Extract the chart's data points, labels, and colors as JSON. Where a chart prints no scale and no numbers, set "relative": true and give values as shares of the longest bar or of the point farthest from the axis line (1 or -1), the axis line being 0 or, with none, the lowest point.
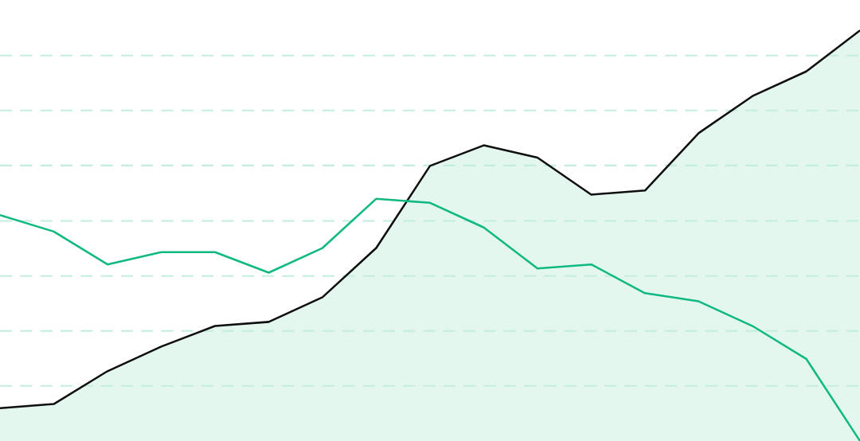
{
  "chart_data": {
    "type": "line",
    "relative": true,
    "marker": "none",
    "categories": [
      null,
      null,
      null,
      null,
      null,
      null,
      null,
      null,
      null,
      null,
      null,
      null,
      null,
      null,
      null,
      null,
      null
    ],
    "series": [
      {
        "type": "area",
        "color": "#e3f7ef",
        "values": [
          0.08,
          0.09,
          0.17,
          0.23,
          0.28,
          0.29,
          0.35,
          0.47,
          0.67,
          0.72,
          0.69,
          0.6,
          0.61,
          0.75,
          0.84,
          0.9,
          1
        ]
      },
      {
        "color": "#10b981",
        "values": [
          0.55,
          0.51,
          0.43,
          0.46,
          0.46,
          0.41,
          0.47,
          0.59,
          0.58,
          0.52,
          0.42,
          0.43,
          0.36,
          0.34,
          0.28,
          0.2,
          0
        ]
      }
    ],
    "ref_lines": [
      {
        "axis": "y",
        "value": 0.134,
        "color": "#c3eddf",
        "line_style": "dashed"
      },
      {
        "axis": "y",
        "value": 0.268,
        "color": "#c3eddf",
        "line_style": "dashed"
      },
      {
        "axis": "y",
        "value": 0.402,
        "color": "#c3eddf",
        "line_style": "dashed"
      },
      {
        "axis": "y",
        "value": 0.536,
        "color": "#c3eddf",
        "line_style": "dashed"
      },
      {
        "axis": "y",
        "value": 0.671,
        "color": "#c3eddf",
        "line_style": "dashed"
      },
      {
        "axis": "y",
        "value": 0.805,
        "color": "#c3eddf",
        "line_style": "dashed"
      },
      {
        "axis": "y",
        "value": 0.939,
        "color": "#c3eddf",
        "line_style": "dashed"
      }
    ]
  }
}
